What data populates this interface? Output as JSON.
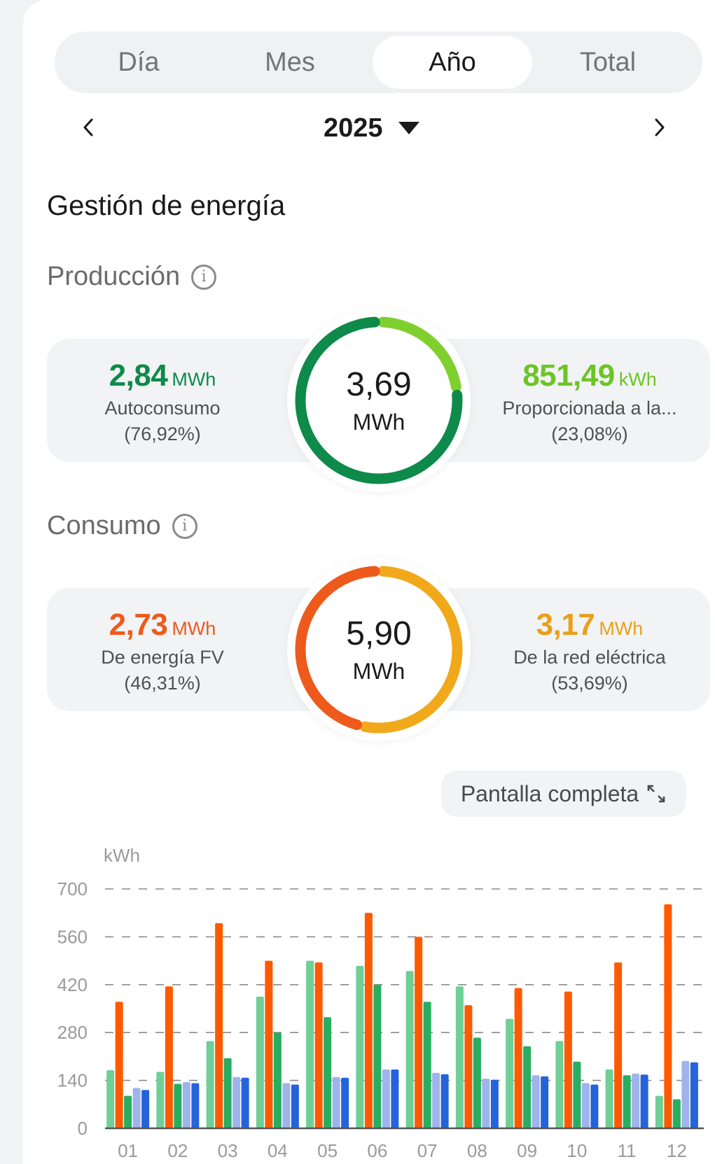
{
  "tabs": [
    {
      "label": "Día",
      "active": false
    },
    {
      "label": "Mes",
      "active": false
    },
    {
      "label": "Año",
      "active": true
    },
    {
      "label": "Total",
      "active": false
    }
  ],
  "year_nav": {
    "year": "2025"
  },
  "page_title": "Gestión de energía",
  "production": {
    "title": "Producción",
    "info_glyph": "i",
    "total_value": "3,69",
    "total_unit": "MWh",
    "left": {
      "value": "2,84",
      "unit": "MWh",
      "label": "Autoconsumo",
      "pct": "(76,92%)",
      "color": "#0e8a4a",
      "share": 0.7692
    },
    "right": {
      "value": "851,49",
      "unit": "kWh",
      "label": "Proporcionada a la...",
      "pct": "(23,08%)",
      "color": "#7fcf2e",
      "share": 0.2308
    }
  },
  "consumption": {
    "title": "Consumo",
    "info_glyph": "i",
    "total_value": "5,90",
    "total_unit": "MWh",
    "left": {
      "value": "2,73",
      "unit": "MWh",
      "label": "De energía FV",
      "pct": "(46,31%)",
      "color": "#ee5a1b",
      "share": 0.4631
    },
    "right": {
      "value": "3,17",
      "unit": "MWh",
      "label": "De la red eléctrica",
      "pct": "(53,69%)",
      "color": "#f1a91b",
      "share": 0.5369
    }
  },
  "fullscreen_label": "Pantalla completa",
  "chart_data": {
    "type": "bar",
    "ylabel": "kWh",
    "ylim": [
      0,
      700
    ],
    "yticks": [
      0,
      140,
      280,
      420,
      560,
      700
    ],
    "grid": true,
    "categories": [
      "01",
      "02",
      "03",
      "04",
      "05",
      "06",
      "07",
      "08",
      "09",
      "10",
      "11",
      "12"
    ],
    "series": [
      {
        "color": "#6fcf97",
        "values": [
          170,
          165,
          255,
          385,
          490,
          475,
          460,
          415,
          320,
          255,
          172,
          95
        ]
      },
      {
        "color": "#ff5a00",
        "values": [
          370,
          415,
          600,
          490,
          485,
          630,
          560,
          360,
          410,
          400,
          485,
          655
        ]
      },
      {
        "color": "#27ae60",
        "values": [
          95,
          130,
          205,
          280,
          325,
          420,
          370,
          265,
          240,
          195,
          155,
          85
        ]
      },
      {
        "color": "#9fb4ec",
        "values": [
          118,
          135,
          150,
          132,
          150,
          172,
          162,
          145,
          155,
          132,
          160,
          197
        ]
      },
      {
        "color": "#2563d9",
        "values": [
          112,
          132,
          148,
          128,
          148,
          172,
          158,
          142,
          152,
          128,
          157,
          193
        ]
      }
    ]
  }
}
